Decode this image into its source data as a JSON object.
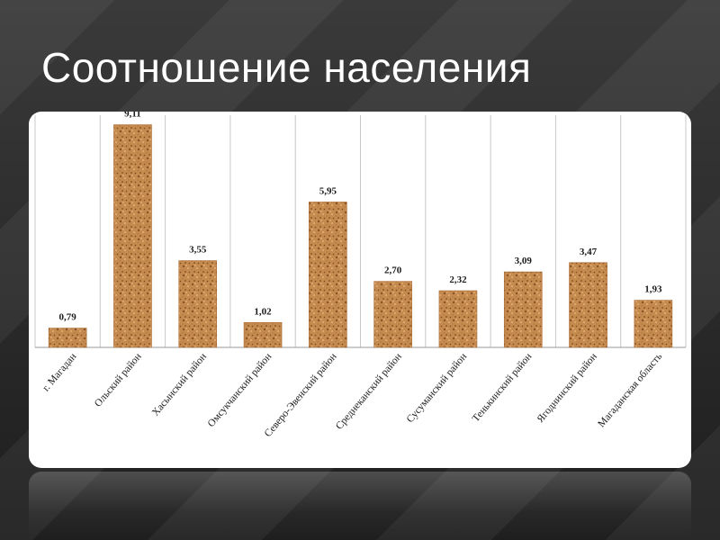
{
  "slide": {
    "title": "Соотношение населения"
  },
  "colors": {
    "background": "#2b2b2b",
    "bar_fill": "#c58a4e",
    "bar_dark": "#8a5226",
    "grid": "#c8c8c8",
    "text": "#1a1a1a"
  },
  "chart_data": {
    "type": "bar",
    "categories": [
      "г. Магадан",
      "Ольский район",
      "Хасынский район",
      "Омсукчанский район",
      "Северо-Эвенский район",
      "Среднеканский район",
      "Сусуманский район",
      "Тенькинский район",
      "Ягоднинский район",
      "Магаданская область"
    ],
    "values": [
      0.79,
      9.11,
      3.55,
      1.02,
      5.95,
      2.7,
      2.32,
      3.09,
      3.47,
      1.93
    ],
    "data_labels": [
      "0,79",
      "9,11",
      "3,55",
      "1,02",
      "5,95",
      "2,70",
      "2,32",
      "3,09",
      "3,47",
      "1,93"
    ],
    "ylim": [
      0,
      9.5
    ],
    "grid": "vertical separators between categories",
    "legend": "none",
    "bar_texture": "cork"
  }
}
